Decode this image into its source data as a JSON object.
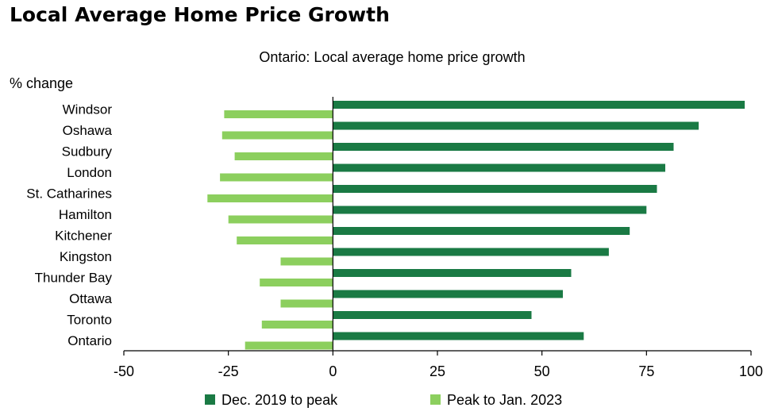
{
  "page": {
    "title": "Local Average Home Price Growth"
  },
  "chart_data": {
    "type": "bar",
    "orientation": "horizontal",
    "title": "Ontario: Local average home price growth",
    "ylabel": "% change",
    "categories": [
      "Windsor",
      "Oshawa",
      "Sudbury",
      "London",
      "St. Catharines",
      "Hamilton",
      "Kitchener",
      "Kingston",
      "Thunder Bay",
      "Ottawa",
      "Toronto",
      "Ontario"
    ],
    "series": [
      {
        "name": "Dec. 2019 to peak",
        "color": "#1a7a44",
        "values": [
          98.5,
          87.5,
          81.5,
          79.5,
          77.5,
          75.0,
          71.0,
          66.0,
          57.0,
          55.0,
          47.5,
          60.0
        ]
      },
      {
        "name": "Peak to Jan. 2023",
        "color": "#8ccf5e",
        "values": [
          -26.0,
          -26.5,
          -23.5,
          -27.0,
          -30.0,
          -25.0,
          -23.0,
          -12.5,
          -17.5,
          -12.5,
          -17.0,
          -21.0
        ]
      }
    ],
    "xlim": [
      -50,
      100
    ],
    "xticks": [
      "-50",
      "-25",
      "0",
      "25",
      "50",
      "75",
      "100"
    ],
    "grid": false,
    "legend_position": "bottom"
  }
}
